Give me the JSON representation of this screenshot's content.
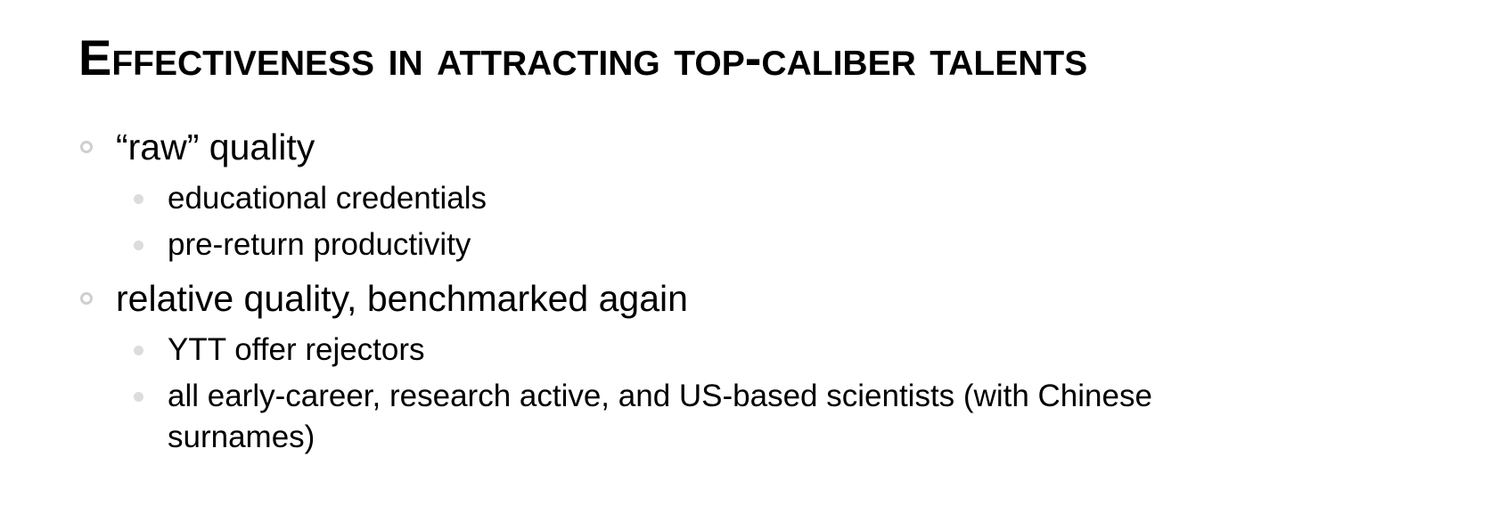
{
  "slide": {
    "title": "Effectiveness in attracting top-caliber talents",
    "items": [
      {
        "text": "“raw” quality",
        "subitems": [
          "educational credentials",
          "pre-return productivity"
        ]
      },
      {
        "text": "relative quality, benchmarked again",
        "subitems": [
          "YTT offer rejectors",
          "all early-career, research active, and US-based scientists (with Chinese surnames)"
        ]
      }
    ]
  },
  "colors": {
    "text": "#000000",
    "marker_level1": "#cfcfcf",
    "marker_level2": "#dcdcdc",
    "background": "#ffffff"
  }
}
